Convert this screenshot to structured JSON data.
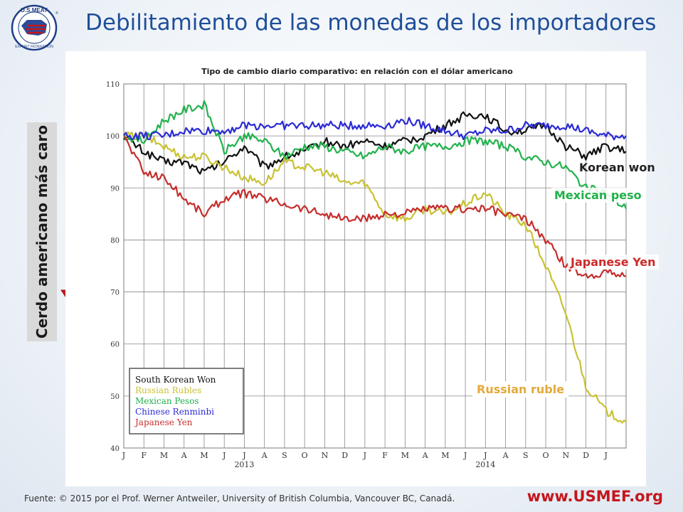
{
  "page": {
    "title": "Debilitamiento de las monedas de los importadores",
    "vertical_label": "Cerdo americano más caro",
    "footer": "Fuente: © 2015 por el Prof. Werner Antweiler, University of British Columbia, Vancouver BC, Canadá.",
    "website": "www.USMEF.org",
    "logo": {
      "top_text": "U.S.MEAT",
      "bottom_text": "EXPORT FEDERATION",
      "registered": "®"
    },
    "colors": {
      "title": "#1f4e9a",
      "website": "#c4161c",
      "arrow": "#dd2a24"
    }
  },
  "labels": {
    "korean": {
      "text": "Korean won",
      "color": "#222222"
    },
    "mexican": {
      "text": "Mexican peso",
      "color": "#20b04a"
    },
    "japanese": {
      "text": "Japanese Yen",
      "color": "#cc2a2a"
    },
    "russian": {
      "text": "Russian ruble",
      "color": "#e5a93a"
    }
  },
  "chart_data": {
    "type": "line",
    "title": "Tipo de cambio diario comparativo: en relación con el dólar americano",
    "ylim": [
      40,
      110
    ],
    "yticks": [
      40,
      50,
      60,
      70,
      80,
      90,
      100,
      110
    ],
    "x_month_labels": [
      "J",
      "F",
      "M",
      "A",
      "M",
      "J",
      "J",
      "A",
      "S",
      "O",
      "N",
      "D",
      "J",
      "F",
      "M",
      "A",
      "M",
      "J",
      "J",
      "A",
      "S",
      "O",
      "N",
      "D",
      "J"
    ],
    "x_year_labels": [
      {
        "label": "2013",
        "index": 6
      },
      {
        "label": "2014",
        "index": 18
      }
    ],
    "x_months_numeric": [
      0,
      1,
      2,
      3,
      4,
      5,
      6,
      7,
      8,
      9,
      10,
      11,
      12,
      13,
      14,
      15,
      16,
      17,
      18,
      19,
      20,
      21,
      22,
      23,
      24,
      25
    ],
    "grid": true,
    "legend_position": "bottom-left",
    "series": [
      {
        "name": "South Korean Won",
        "color": "#111111",
        "values": [
          100,
          97,
          95,
          95,
          93,
          95,
          98,
          94,
          96,
          97,
          99,
          98,
          99,
          98,
          99,
          100,
          102,
          104,
          104,
          101,
          101,
          102,
          98,
          96,
          98,
          97
        ]
      },
      {
        "name": "Russian Rubles",
        "color": "#c9c233",
        "values": [
          100,
          100,
          98,
          96,
          96,
          94,
          92,
          91,
          95,
          94,
          93,
          91,
          91,
          85,
          84,
          86,
          85,
          87,
          89,
          85,
          83,
          75,
          66,
          52,
          47,
          45
        ]
      },
      {
        "name": "Mexican Pesos",
        "color": "#22b24c",
        "values": [
          100,
          99,
          103,
          105,
          106,
          97,
          100,
          99,
          96,
          98,
          98,
          97,
          96,
          98,
          97,
          98,
          98,
          99,
          99,
          98,
          96,
          95,
          94,
          90,
          89,
          86
        ]
      },
      {
        "name": "Chinese Renminbi",
        "color": "#2b2bd6",
        "values": [
          100,
          100,
          100,
          101,
          101,
          101,
          102,
          102,
          102,
          102,
          102,
          102,
          102,
          102,
          103,
          102,
          101,
          100,
          101,
          101,
          102,
          102,
          102,
          101,
          100,
          100
        ]
      },
      {
        "name": "Japanese Yen",
        "color": "#c62d2d",
        "values": [
          100,
          93,
          92,
          88,
          85,
          88,
          89,
          88,
          87,
          86,
          85,
          84,
          84,
          85,
          85,
          86,
          86,
          86,
          86,
          85,
          84,
          80,
          75,
          73,
          74,
          73
        ]
      }
    ]
  }
}
